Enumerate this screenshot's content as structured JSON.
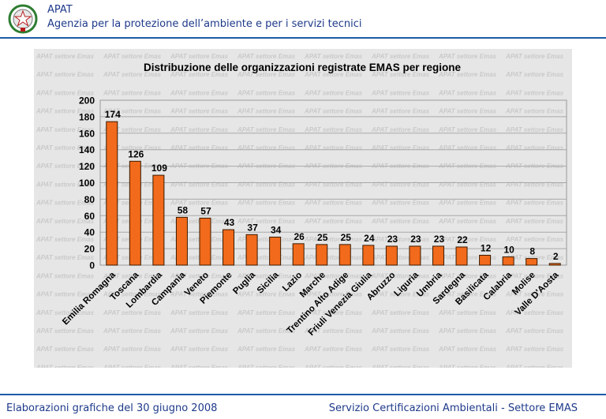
{
  "header": {
    "org_short": "APAT",
    "org_long": "Agenzia per la protezione dell’ambiente e per i servizi tecnici"
  },
  "watermark": "APAT settore Emas",
  "footer": {
    "left": "Elaborazioni grafiche del 30 giugno 2008",
    "right": "Servizio Certificazioni Ambientali - Settore EMAS"
  },
  "colors": {
    "brand": "#1e3a8a",
    "rule": "#1e5aa8",
    "bar": "#f26a1b",
    "bar_outline": "#3a1a00"
  },
  "chart_data": {
    "type": "bar",
    "title": "Distribuzione delle organizzazioni registrate EMAS per regione",
    "xlabel": "",
    "ylabel": "",
    "ylim": [
      0,
      200
    ],
    "yticks": [
      0,
      20,
      40,
      60,
      80,
      100,
      120,
      140,
      160,
      180,
      200
    ],
    "grid": true,
    "legend": "none",
    "categories": [
      "Emilia Romagna",
      "Toscana",
      "Lombardia",
      "Campania",
      "Veneto",
      "Piemonte",
      "Puglia",
      "Sicilia",
      "Lazio",
      "Marche",
      "Trentino Alto Adige",
      "Friuli Venezia Giulia",
      "Abruzzo",
      "Liguria",
      "Umbria",
      "Sardegna",
      "Basilicata",
      "Calabria",
      "Molise",
      "Valle D'Aosta"
    ],
    "values": [
      174,
      126,
      109,
      58,
      57,
      43,
      37,
      34,
      26,
      25,
      25,
      24,
      23,
      23,
      23,
      22,
      12,
      10,
      8,
      2
    ]
  }
}
